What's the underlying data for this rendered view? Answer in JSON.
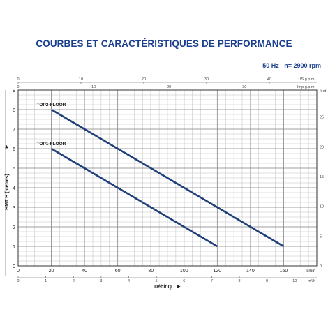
{
  "chart_data": {
    "type": "line",
    "title": "COURBES ET CARACTÉRISTIQUES DE PERFORMANCE",
    "subtitle_left": "50 Hz",
    "subtitle_right": "n= 2900 rpm",
    "xlabel": "Débit Q",
    "ylabel": "HMT H (mètres)",
    "x_unit": "l/min",
    "xlim": [
      0,
      180
    ],
    "ylim": [
      0,
      9
    ],
    "x_ticks": [
      0,
      20,
      40,
      60,
      80,
      100,
      120,
      140,
      160
    ],
    "y_ticks": [
      0,
      1,
      2,
      3,
      4,
      5,
      6,
      7,
      8,
      9
    ],
    "grid": true,
    "secondary_axes": {
      "us_gpm": {
        "unit": "US g.p.m.",
        "ticks": [
          0,
          10,
          20,
          30,
          40
        ]
      },
      "imp_gpm": {
        "unit": "Imp g.p.m.",
        "ticks": [
          0,
          10,
          20,
          30
        ]
      },
      "m3h": {
        "unit": "m³/h",
        "ticks": [
          0,
          1,
          2,
          3,
          4,
          5,
          6,
          7,
          8,
          9,
          10
        ]
      },
      "feet": {
        "unit": "feet",
        "ticks": [
          0,
          5,
          10,
          15,
          20,
          25
        ]
      }
    },
    "series": [
      {
        "name": "TOP2-FLOOR",
        "x": [
          20,
          160
        ],
        "y": [
          8,
          1
        ],
        "color": "#1f3f78"
      },
      {
        "name": "TOP1-FLOOR",
        "x": [
          20,
          120
        ],
        "y": [
          6,
          1
        ],
        "color": "#1f3f78"
      }
    ]
  }
}
